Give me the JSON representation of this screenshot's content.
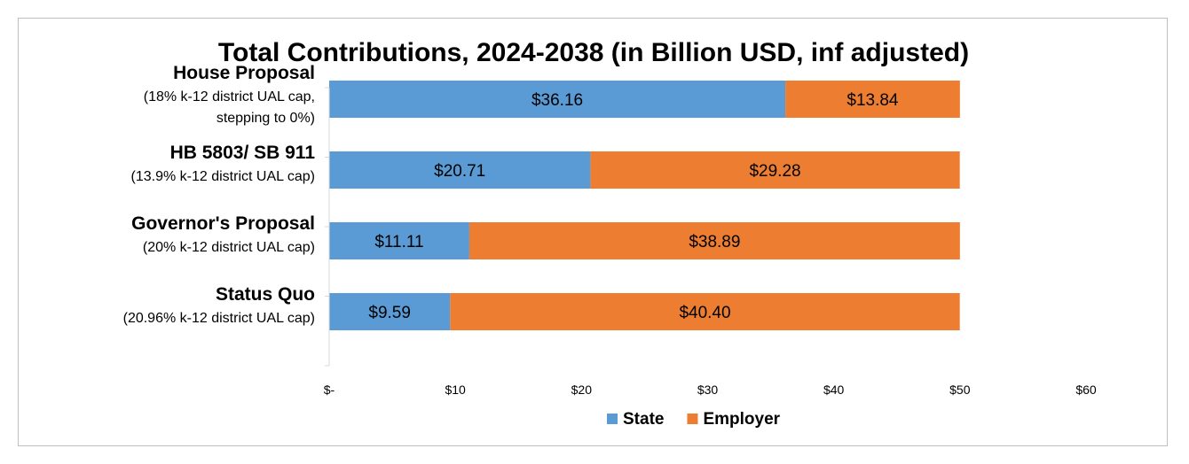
{
  "chart_data": {
    "type": "bar",
    "orientation": "horizontal",
    "stacked": true,
    "title": "Total Contributions, 2024-2038 (in Billion USD, inf adjusted)",
    "xlabel": "",
    "ylabel": "",
    "xlim": [
      0,
      60
    ],
    "x_ticks": [
      {
        "value": 0,
        "label": "$-"
      },
      {
        "value": 10,
        "label": "$10"
      },
      {
        "value": 20,
        "label": "$20"
      },
      {
        "value": 30,
        "label": "$30"
      },
      {
        "value": 40,
        "label": "$40"
      },
      {
        "value": 50,
        "label": "$50"
      },
      {
        "value": 60,
        "label": "$60"
      }
    ],
    "grid": false,
    "legend_position": "bottom",
    "categories": [
      {
        "name": "House Proposal",
        "subtitle": [
          "(18% k-12 district UAL cap,",
          "stepping to 0%)"
        ]
      },
      {
        "name": "HB 5803/ SB 911",
        "subtitle": [
          "(13.9% k-12 district UAL cap)"
        ]
      },
      {
        "name": "Governor's Proposal",
        "subtitle": [
          "(20% k-12 district UAL cap)"
        ]
      },
      {
        "name": "Status Quo",
        "subtitle": [
          "(20.96% k-12 district UAL cap)"
        ]
      }
    ],
    "series": [
      {
        "name": "State",
        "color": "#5b9bd5",
        "values": [
          36.16,
          20.71,
          11.11,
          9.59
        ],
        "labels": [
          "$36.16",
          "$20.71",
          "$11.11",
          "$9.59"
        ]
      },
      {
        "name": "Employer",
        "color": "#ed7d31",
        "values": [
          13.84,
          29.28,
          38.89,
          40.4
        ],
        "labels": [
          "$13.84",
          "$29.28",
          "$38.89",
          "$40.40"
        ]
      }
    ]
  }
}
